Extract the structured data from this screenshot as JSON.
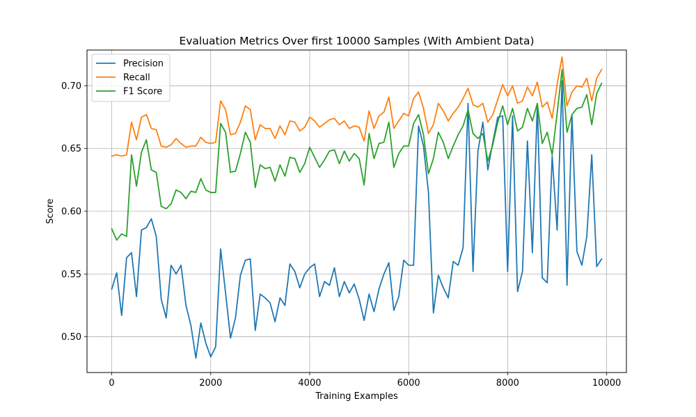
{
  "chart_data": {
    "type": "line",
    "title": "Evaluation Metrics Over first 10000 Samples (With Ambient Data)",
    "xlabel": "Training Examples",
    "ylabel": "Score",
    "xlim": [
      -500,
      10400
    ],
    "ylim": [
      0.4715,
      0.7285
    ],
    "xticks": [
      0,
      2000,
      4000,
      6000,
      8000,
      10000
    ],
    "xtick_labels": [
      "0",
      "2000",
      "4000",
      "6000",
      "8000",
      "10000"
    ],
    "yticks": [
      0.5,
      0.55,
      0.6,
      0.65,
      0.7
    ],
    "ytick_labels": [
      "0.50",
      "0.55",
      "0.60",
      "0.65",
      "0.70"
    ],
    "grid": true,
    "legend_position": "top-left",
    "x": [
      0,
      100,
      200,
      300,
      400,
      500,
      600,
      700,
      800,
      900,
      1000,
      1100,
      1200,
      1300,
      1400,
      1500,
      1600,
      1700,
      1800,
      1900,
      2000,
      2100,
      2200,
      2300,
      2400,
      2500,
      2600,
      2700,
      2800,
      2900,
      3000,
      3100,
      3200,
      3300,
      3400,
      3500,
      3600,
      3700,
      3800,
      3900,
      4000,
      4100,
      4200,
      4300,
      4400,
      4500,
      4600,
      4700,
      4800,
      4900,
      5000,
      5100,
      5200,
      5300,
      5400,
      5500,
      5600,
      5700,
      5800,
      5900,
      6000,
      6100,
      6200,
      6300,
      6400,
      6500,
      6600,
      6700,
      6800,
      6900,
      7000,
      7100,
      7200,
      7300,
      7400,
      7500,
      7600,
      7700,
      7800,
      7900,
      8000,
      8100,
      8200,
      8300,
      8400,
      8500,
      8600,
      8700,
      8800,
      8900,
      9000,
      9100,
      9200,
      9300,
      9400,
      9500,
      9600,
      9700,
      9800,
      9900
    ],
    "series": [
      {
        "name": "Precision",
        "color": "#1f77b4",
        "values": [
          0.538,
          0.551,
          0.517,
          0.563,
          0.567,
          0.532,
          0.585,
          0.587,
          0.594,
          0.58,
          0.53,
          0.515,
          0.557,
          0.55,
          0.557,
          0.525,
          0.509,
          0.483,
          0.511,
          0.495,
          0.484,
          0.492,
          0.57,
          0.535,
          0.499,
          0.515,
          0.549,
          0.561,
          0.562,
          0.505,
          0.534,
          0.531,
          0.527,
          0.512,
          0.531,
          0.525,
          0.558,
          0.552,
          0.539,
          0.55,
          0.555,
          0.558,
          0.532,
          0.544,
          0.541,
          0.555,
          0.532,
          0.544,
          0.535,
          0.542,
          0.53,
          0.513,
          0.534,
          0.52,
          0.538,
          0.55,
          0.559,
          0.521,
          0.532,
          0.561,
          0.557,
          0.557,
          0.668,
          0.652,
          0.615,
          0.519,
          0.549,
          0.539,
          0.531,
          0.56,
          0.557,
          0.571,
          0.686,
          0.552,
          0.648,
          0.671,
          0.633,
          0.655,
          0.675,
          0.676,
          0.552,
          0.676,
          0.536,
          0.552,
          0.656,
          0.567,
          0.685,
          0.547,
          0.543,
          0.644,
          0.585,
          0.704,
          0.541,
          0.677,
          0.568,
          0.557,
          0.58,
          0.645,
          0.556,
          0.562
        ]
      },
      {
        "name": "Recall",
        "color": "#ff7f0e",
        "values": [
          0.644,
          0.645,
          0.644,
          0.645,
          0.671,
          0.657,
          0.675,
          0.677,
          0.666,
          0.665,
          0.652,
          0.651,
          0.653,
          0.658,
          0.654,
          0.651,
          0.652,
          0.652,
          0.659,
          0.655,
          0.654,
          0.655,
          0.688,
          0.681,
          0.661,
          0.662,
          0.671,
          0.684,
          0.681,
          0.657,
          0.669,
          0.666,
          0.666,
          0.658,
          0.668,
          0.661,
          0.672,
          0.671,
          0.664,
          0.667,
          0.675,
          0.672,
          0.667,
          0.67,
          0.673,
          0.674,
          0.669,
          0.672,
          0.666,
          0.668,
          0.667,
          0.656,
          0.68,
          0.666,
          0.676,
          0.679,
          0.691,
          0.666,
          0.672,
          0.678,
          0.676,
          0.69,
          0.695,
          0.682,
          0.662,
          0.669,
          0.686,
          0.68,
          0.672,
          0.678,
          0.683,
          0.69,
          0.698,
          0.685,
          0.683,
          0.686,
          0.671,
          0.677,
          0.689,
          0.701,
          0.692,
          0.7,
          0.686,
          0.688,
          0.699,
          0.692,
          0.703,
          0.683,
          0.687,
          0.674,
          0.701,
          0.723,
          0.684,
          0.695,
          0.7,
          0.699,
          0.706,
          0.688,
          0.706,
          0.713
        ]
      },
      {
        "name": "F1 Score",
        "color": "#2ca02c",
        "values": [
          0.586,
          0.577,
          0.582,
          0.58,
          0.645,
          0.62,
          0.647,
          0.657,
          0.633,
          0.631,
          0.604,
          0.602,
          0.606,
          0.617,
          0.615,
          0.61,
          0.616,
          0.615,
          0.626,
          0.617,
          0.615,
          0.615,
          0.67,
          0.663,
          0.631,
          0.632,
          0.646,
          0.663,
          0.655,
          0.619,
          0.637,
          0.634,
          0.635,
          0.624,
          0.637,
          0.628,
          0.643,
          0.642,
          0.631,
          0.638,
          0.651,
          0.643,
          0.635,
          0.641,
          0.648,
          0.649,
          0.638,
          0.648,
          0.64,
          0.646,
          0.642,
          0.621,
          0.662,
          0.642,
          0.654,
          0.655,
          0.671,
          0.635,
          0.646,
          0.652,
          0.652,
          0.67,
          0.677,
          0.661,
          0.63,
          0.642,
          0.663,
          0.655,
          0.642,
          0.652,
          0.661,
          0.668,
          0.681,
          0.662,
          0.658,
          0.662,
          0.64,
          0.653,
          0.671,
          0.684,
          0.669,
          0.682,
          0.664,
          0.667,
          0.682,
          0.672,
          0.686,
          0.654,
          0.663,
          0.645,
          0.678,
          0.713,
          0.663,
          0.677,
          0.682,
          0.683,
          0.693,
          0.669,
          0.694,
          0.702
        ]
      }
    ]
  }
}
